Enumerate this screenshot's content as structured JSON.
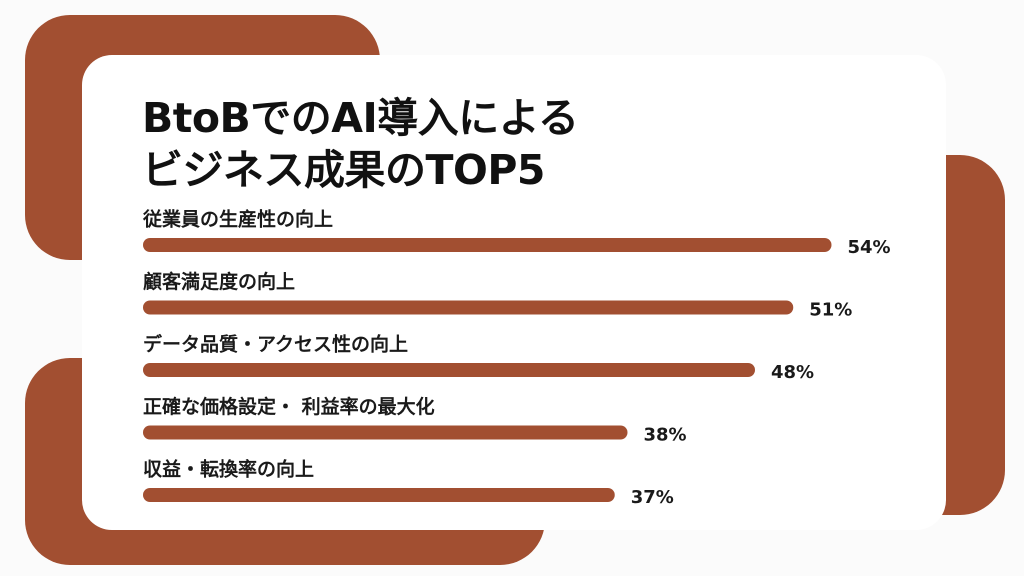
{
  "chart_data": {
    "type": "bar",
    "orientation": "horizontal",
    "title": "BtoBでのAI導入による\nビジネス成果のTOP5",
    "categories": [
      "従業員の生産性の向上",
      "顧客満足度の向上",
      "データ品質・アクセス性の向上",
      "正確な価格設定・ 利益率の最大化",
      "収益・転換率の向上"
    ],
    "values": [
      54,
      51,
      48,
      38,
      37
    ],
    "value_labels": [
      "54%",
      "51%",
      "48%",
      "38%",
      "37%"
    ],
    "color": "#a24f31"
  }
}
